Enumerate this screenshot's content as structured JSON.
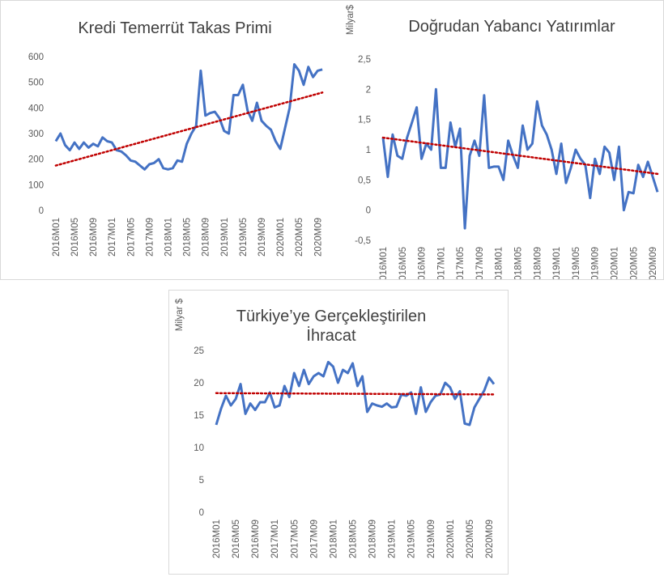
{
  "chart_data": [
    {
      "type": "line",
      "title": "Kredi Temerrüt Takas Primi",
      "categories": [
        "2016M01",
        null,
        null,
        null,
        "2016M05",
        null,
        null,
        null,
        "2016M09",
        null,
        null,
        null,
        "2017M01",
        null,
        null,
        null,
        "2017M05",
        null,
        null,
        null,
        "2017M09",
        null,
        null,
        null,
        "2018M01",
        null,
        null,
        null,
        "2018M05",
        null,
        null,
        null,
        "2018M09",
        null,
        null,
        null,
        "2019M01",
        null,
        null,
        null,
        "2019M05",
        null,
        null,
        null,
        "2019M09",
        null,
        null,
        null,
        "2020M01",
        null,
        null,
        null,
        "2020M05",
        null,
        null,
        null,
        "2020M09",
        null
      ],
      "series": [
        {
          "color": "#4472c4",
          "values": [
            270,
            300,
            255,
            235,
            265,
            240,
            265,
            245,
            260,
            250,
            285,
            270,
            265,
            235,
            230,
            215,
            195,
            190,
            175,
            160,
            180,
            185,
            200,
            165,
            160,
            165,
            195,
            190,
            260,
            300,
            330,
            545,
            370,
            380,
            385,
            360,
            310,
            300,
            450,
            450,
            490,
            390,
            350,
            420,
            350,
            330,
            315,
            270,
            240,
            320,
            400,
            570,
            545,
            490,
            560,
            520,
            545,
            550
          ]
        }
      ],
      "trend": {
        "color": "#c00000",
        "values": [
          175,
          460
        ]
      },
      "ylim": [
        0,
        600
      ],
      "yticks": [
        0,
        100,
        200,
        300,
        400,
        500,
        600
      ]
    },
    {
      "type": "line",
      "title": "Doğrudan Yabancı Yatırımlar",
      "y_label": "Milyar$",
      "categories": [
        "2016M01",
        null,
        null,
        null,
        "2016M05",
        null,
        null,
        null,
        "2016M09",
        null,
        null,
        null,
        "2017M01",
        null,
        null,
        null,
        "2017M05",
        null,
        null,
        null,
        "2017M09",
        null,
        null,
        null,
        "2018M01",
        null,
        null,
        null,
        "2018M05",
        null,
        null,
        null,
        "2018M09",
        null,
        null,
        null,
        "2019M01",
        null,
        null,
        null,
        "2019M05",
        null,
        null,
        null,
        "2019M09",
        null,
        null,
        null,
        "2020M01",
        null,
        null,
        null,
        "2020M05",
        null,
        null,
        null,
        "2020M09",
        null
      ],
      "series": [
        {
          "color": "#4472c4",
          "values": [
            1.2,
            0.55,
            1.25,
            0.9,
            0.85,
            1.2,
            1.45,
            1.7,
            0.85,
            1.1,
            1.0,
            2.0,
            0.7,
            0.7,
            1.45,
            1.05,
            1.35,
            -0.3,
            0.9,
            1.15,
            0.9,
            1.9,
            0.7,
            0.72,
            0.72,
            0.5,
            1.15,
            0.9,
            0.7,
            1.4,
            1.0,
            1.1,
            1.8,
            1.4,
            1.25,
            1.0,
            0.6,
            1.1,
            0.45,
            0.7,
            1.0,
            0.85,
            0.75,
            0.2,
            0.85,
            0.6,
            1.05,
            0.95,
            0.5,
            1.05,
            0.0,
            0.3,
            0.28,
            0.75,
            0.55,
            0.8,
            0.55,
            0.3
          ]
        }
      ],
      "trend": {
        "color": "#c00000",
        "values": [
          1.2,
          0.6
        ]
      },
      "ylim": [
        -0.5,
        2.5
      ],
      "yticks": [
        {
          "value": -0.5,
          "label": "-0,5"
        },
        0,
        {
          "value": 0.5,
          "label": "0,5"
        },
        1,
        {
          "value": 1.5,
          "label": "1,5"
        },
        2,
        {
          "value": 2.5,
          "label": "2,5"
        }
      ]
    },
    {
      "type": "line",
      "title": "Türkiye’ye Gerçekleştirilen İhracat",
      "y_label": "Milyar $",
      "categories": [
        "2016M01",
        null,
        null,
        null,
        "2016M05",
        null,
        null,
        null,
        "2016M09",
        null,
        null,
        null,
        "2017M01",
        null,
        null,
        null,
        "2017M05",
        null,
        null,
        null,
        "2017M09",
        null,
        null,
        null,
        "2018M01",
        null,
        null,
        null,
        "2018M05",
        null,
        null,
        null,
        "2018M09",
        null,
        null,
        null,
        "2019M01",
        null,
        null,
        null,
        "2019M05",
        null,
        null,
        null,
        "2019M09",
        null,
        null,
        null,
        "2020M01",
        null,
        null,
        null,
        "2020M05",
        null,
        null,
        null,
        "2020M09",
        null
      ],
      "series": [
        {
          "color": "#4472c4",
          "values": [
            13.5,
            16,
            18,
            16.5,
            17.5,
            19.8,
            15.2,
            16.8,
            15.8,
            17,
            17,
            18.5,
            16.2,
            16.5,
            19.5,
            17.8,
            21.5,
            19.5,
            22,
            19.8,
            21,
            21.5,
            21,
            23.2,
            22.5,
            20,
            22,
            21.5,
            23,
            19.5,
            21,
            15.5,
            16.8,
            16.5,
            16.3,
            16.8,
            16.2,
            16.3,
            18.2,
            18,
            18.5,
            15.2,
            19.3,
            15.5,
            17,
            18,
            18.2,
            20,
            19.3,
            17.5,
            18.7,
            13.7,
            13.5,
            16.2,
            17.5,
            18.8,
            20.8,
            19.8
          ]
        }
      ],
      "trend": {
        "color": "#c00000",
        "values": [
          18.4,
          18.2
        ]
      },
      "ylim": [
        0,
        25
      ],
      "yticks": [
        0,
        5,
        10,
        15,
        20,
        25
      ]
    }
  ]
}
